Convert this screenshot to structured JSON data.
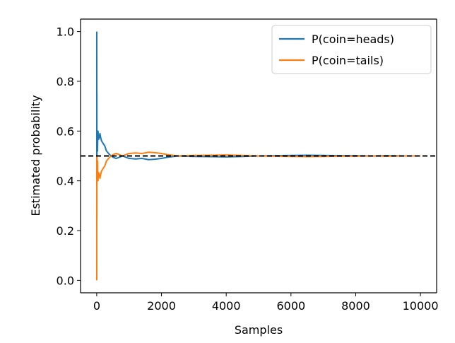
{
  "chart_data": {
    "type": "line",
    "title": "",
    "xlabel": "Samples",
    "ylabel": "Estimated probability",
    "xlim": [
      -500,
      10500
    ],
    "ylim": [
      -0.05,
      1.05
    ],
    "xticks": [
      0,
      2000,
      4000,
      6000,
      8000,
      10000
    ],
    "xtick_labels": [
      "0",
      "2000",
      "4000",
      "6000",
      "8000",
      "10000"
    ],
    "yticks": [
      0.0,
      0.2,
      0.4,
      0.6,
      0.8,
      1.0
    ],
    "ytick_labels": [
      "0.0",
      "0.2",
      "0.4",
      "0.6",
      "0.8",
      "1.0"
    ],
    "grid": false,
    "legend_position": "top-right",
    "series": [
      {
        "name": "P(coin=heads)",
        "color": "#1f77b4",
        "x": [
          1,
          2,
          3,
          4,
          5,
          6,
          8,
          10,
          12,
          15,
          20,
          25,
          30,
          40,
          50,
          60,
          80,
          100,
          120,
          150,
          200,
          250,
          300,
          400,
          500,
          600,
          700,
          800,
          900,
          1000,
          1200,
          1400,
          1600,
          1800,
          2000,
          2200,
          2500,
          3000,
          3500,
          4000,
          4500,
          5000,
          5500,
          6000,
          6500,
          7000,
          7500,
          8000,
          8500,
          9000,
          9500,
          10000
        ],
        "y": [
          1.0,
          0.5,
          0.667,
          0.75,
          0.6,
          0.5,
          0.5,
          0.6,
          0.583,
          0.533,
          0.55,
          0.52,
          0.567,
          0.6,
          0.58,
          0.567,
          0.575,
          0.59,
          0.575,
          0.56,
          0.55,
          0.54,
          0.52,
          0.505,
          0.495,
          0.49,
          0.495,
          0.5,
          0.495,
          0.49,
          0.488,
          0.49,
          0.485,
          0.487,
          0.49,
          0.495,
          0.5,
          0.498,
          0.497,
          0.496,
          0.498,
          0.5,
          0.501,
          0.502,
          0.503,
          0.502,
          0.501,
          0.501,
          0.5,
          0.501,
          0.5,
          0.5
        ]
      },
      {
        "name": "P(coin=tails)",
        "color": "#ff7f0e",
        "x": [
          1,
          2,
          3,
          4,
          5,
          6,
          8,
          10,
          12,
          15,
          20,
          25,
          30,
          40,
          50,
          60,
          80,
          100,
          120,
          150,
          200,
          250,
          300,
          400,
          500,
          600,
          700,
          800,
          900,
          1000,
          1200,
          1400,
          1600,
          1800,
          2000,
          2200,
          2500,
          3000,
          3500,
          4000,
          4500,
          5000,
          5500,
          6000,
          6500,
          7000,
          7500,
          8000,
          8500,
          9000,
          9500,
          10000
        ],
        "y": [
          0.0,
          0.5,
          0.333,
          0.25,
          0.4,
          0.5,
          0.5,
          0.4,
          0.417,
          0.467,
          0.45,
          0.48,
          0.433,
          0.4,
          0.42,
          0.433,
          0.425,
          0.41,
          0.425,
          0.44,
          0.45,
          0.46,
          0.48,
          0.495,
          0.505,
          0.51,
          0.505,
          0.5,
          0.505,
          0.51,
          0.512,
          0.51,
          0.515,
          0.513,
          0.51,
          0.505,
          0.5,
          0.502,
          0.503,
          0.504,
          0.502,
          0.5,
          0.499,
          0.498,
          0.497,
          0.498,
          0.499,
          0.499,
          0.5,
          0.499,
          0.5,
          0.5
        ]
      }
    ],
    "reference_line": {
      "y": 0.5,
      "color": "#000000",
      "style": "dashed"
    }
  }
}
